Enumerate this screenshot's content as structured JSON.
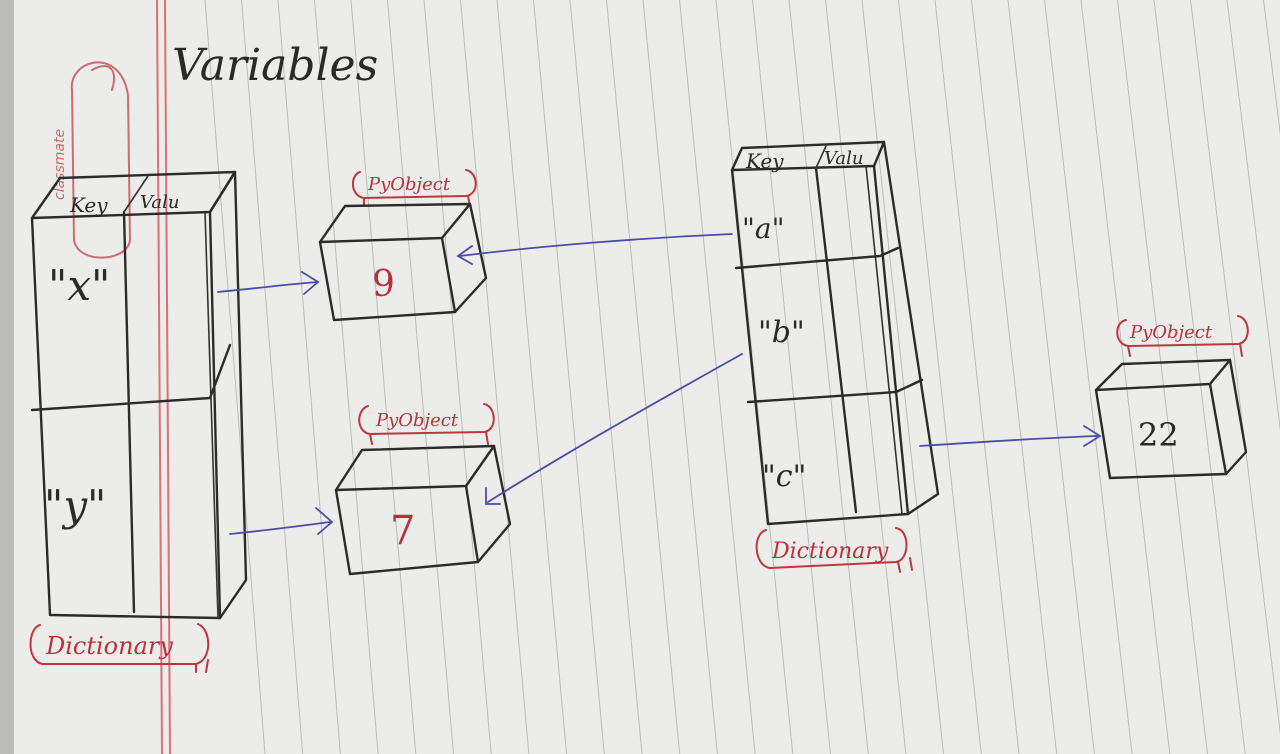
{
  "title": "Variables",
  "brand_watermark": "classmate",
  "colors": {
    "paper": "#ececea",
    "rule_line": "#8f9496",
    "margin_line": "#d9707a",
    "ink": "#2b2b2b",
    "red_ink": "#c0363c",
    "blue_ink": "#4a4fa6"
  },
  "left_dictionary": {
    "header_key": "Key",
    "header_value": "Valu",
    "keys": [
      "\"x\"",
      "\"y\""
    ],
    "label": "Dictionary"
  },
  "pyobjects": [
    {
      "label": "PyObject",
      "value": "9"
    },
    {
      "label": "PyObject",
      "value": "7"
    },
    {
      "label": "PyObject",
      "value": "22"
    }
  ],
  "right_dictionary": {
    "header_key": "Key",
    "header_value": "Valu",
    "keys": [
      "\"a\"",
      "\"b\"",
      "\"c\""
    ],
    "label": "Dictionary"
  }
}
